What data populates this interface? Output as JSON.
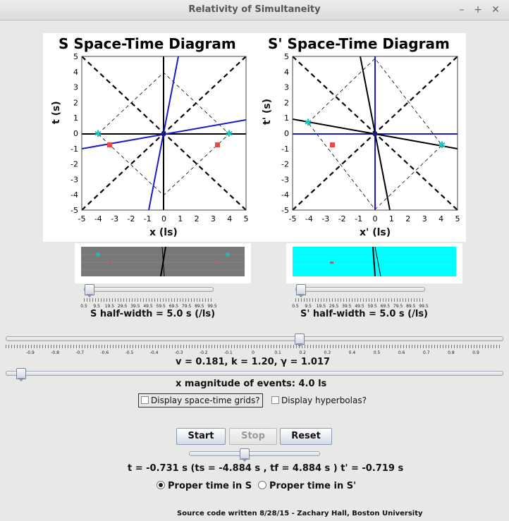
{
  "window": {
    "title": "Relativity of Simultaneity"
  },
  "s_diagram": {
    "title": "S Space-Time Diagram",
    "xlabel": "x (ls)",
    "ylabel": "t (s)"
  },
  "sp_diagram": {
    "title": "S' Space-Time Diagram",
    "xlabel": "x' (ls)",
    "ylabel": "t' (s)"
  },
  "axis_ticks": [
    "-5",
    "-4",
    "-3",
    "-2",
    "-1",
    "0",
    "1",
    "2",
    "3",
    "4",
    "5"
  ],
  "s_halfwidth": {
    "label": "S half-width = 5.0 s (/ls)",
    "ticks": [
      "0.5",
      "9.5",
      "19.5",
      "29.5",
      "39.5",
      "49.5",
      "59.5",
      "69.5",
      "79.5",
      "89.5",
      "99.5"
    ]
  },
  "sp_halfwidth": {
    "label": "S' half-width = 5.0 s (/ls)",
    "ticks": [
      "0.5",
      "9.5",
      "19.5",
      "29.5",
      "39.5",
      "49.5",
      "59.5",
      "69.5",
      "79.5",
      "89.5",
      "99.5"
    ]
  },
  "velocity_ticks": [
    "-0.9",
    "-0.8",
    "-0.7",
    "-0.6",
    "-0.5",
    "-0.4",
    "-0.3",
    "-0.2",
    "-0.1",
    "0",
    "0.1",
    "0.2",
    "0.3",
    "0.4",
    "0.5",
    "0.6",
    "0.7",
    "0.8",
    "0.9"
  ],
  "velocity_label": "v =  0.181, k =  1.20, γ =  1.017",
  "x_magnitude_label": "x magnitude of events: 4.0 ls",
  "grid_checkbox": "Display space-time grids?",
  "hyperbola_checkbox": "Display hyperbolas?",
  "buttons": {
    "start": "Start",
    "stop": "Stop",
    "reset": "Reset"
  },
  "time_readout": "t = -0.731 s (ts = -4.884 s , tf = 4.884 s ) t' = -0.719 s",
  "radio_s": "Proper time in S",
  "radio_sp": "Proper time in S'",
  "footer": "Source code written 8/28/15 - Zachary Hall, Boston University",
  "values": {
    "v": 0.181,
    "s_halfwidth": 5.0,
    "sp_halfwidth": 5.0,
    "x_magnitude": 4.0,
    "proper_time_frame": "S",
    "grids": false,
    "hyperbolas": false
  }
}
